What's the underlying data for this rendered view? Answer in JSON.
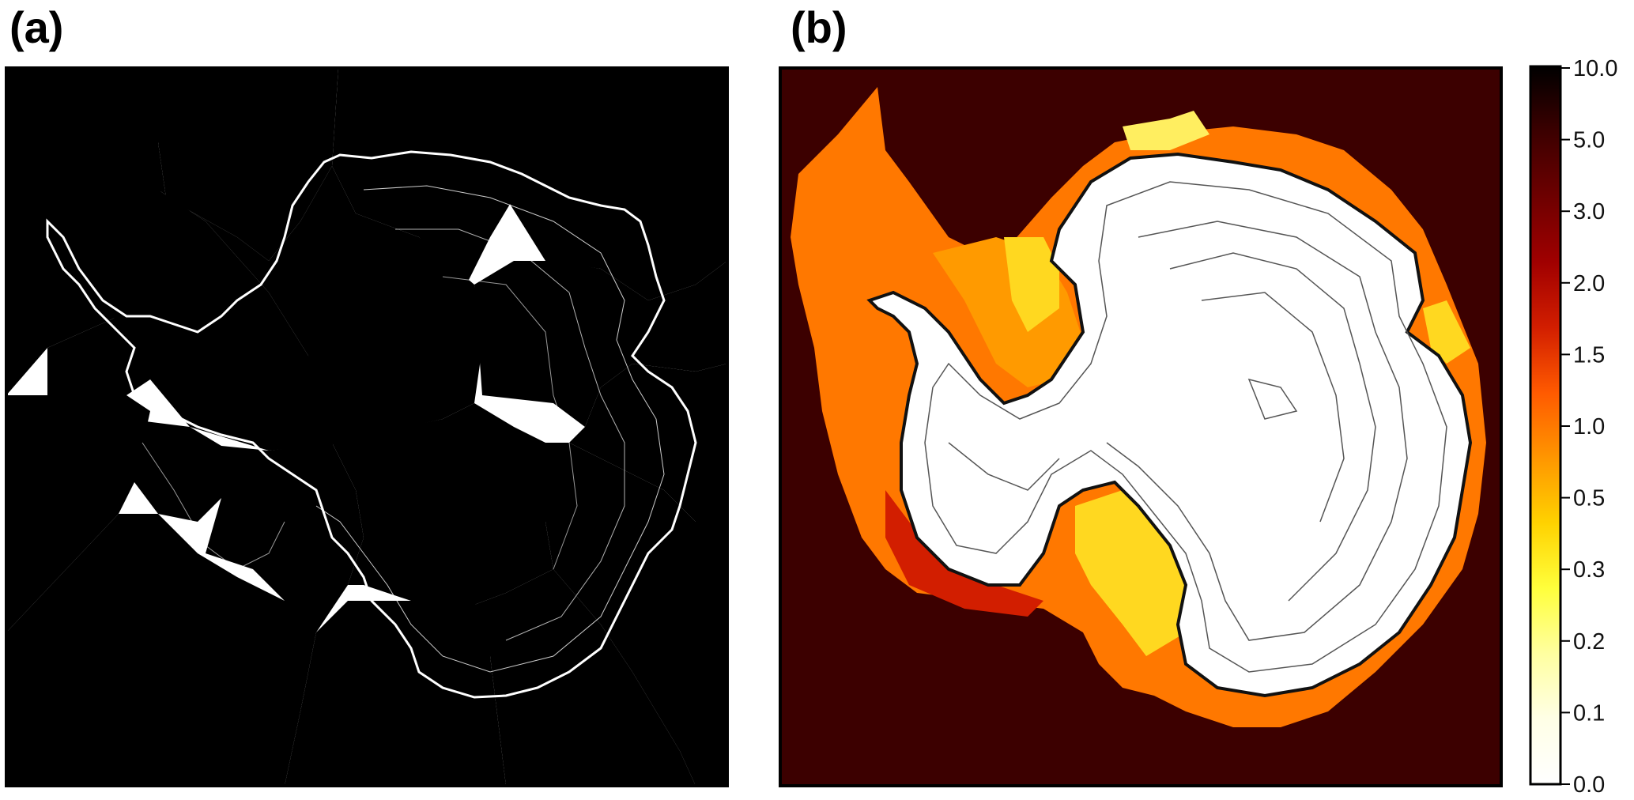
{
  "panels": [
    {
      "label": "(a)"
    },
    {
      "label": "(b)"
    }
  ],
  "colors": {
    "a_regions": [
      "#00ff00",
      "#0000ff",
      "#ff0000",
      "#00ffff",
      "#ff0a82",
      "#e0ff00",
      "#98f8a0",
      "#fa98f0",
      "#ffe8ef",
      "#ff00ff",
      "#5a004a",
      "#5a8c78",
      "#8c60ff",
      "#ffd878",
      "#006400",
      "#0088cc",
      "#a85848",
      "#000064"
    ],
    "b_ocean": "#3c0000",
    "b_shelf": [
      "#ff7800",
      "#ff9a00",
      "#ffd820",
      "#d21e00",
      "#ffee60"
    ],
    "b_ice": "#ffffff"
  },
  "chart_data": [
    {
      "panel": "(a)",
      "type": "heatmap",
      "title": "",
      "xlabel": "",
      "ylabel": ""
    },
    {
      "panel": "(b)",
      "type": "heatmap",
      "title": "",
      "xlabel": "",
      "ylabel": "",
      "colorbar": {
        "ticks": [
          "10.0",
          "5.0",
          "3.0",
          "2.0",
          "1.5",
          "1.0",
          "0.5",
          "0.3",
          "0.2",
          "0.1",
          "0.0"
        ],
        "colors": [
          "#000000",
          "#3c0000",
          "#6e0000",
          "#a00000",
          "#d21e00",
          "#ff5a00",
          "#ff9600",
          "#ffd200",
          "#ffff3c",
          "#ffffa0",
          "#ffffe6",
          "#ffffff"
        ]
      }
    }
  ]
}
